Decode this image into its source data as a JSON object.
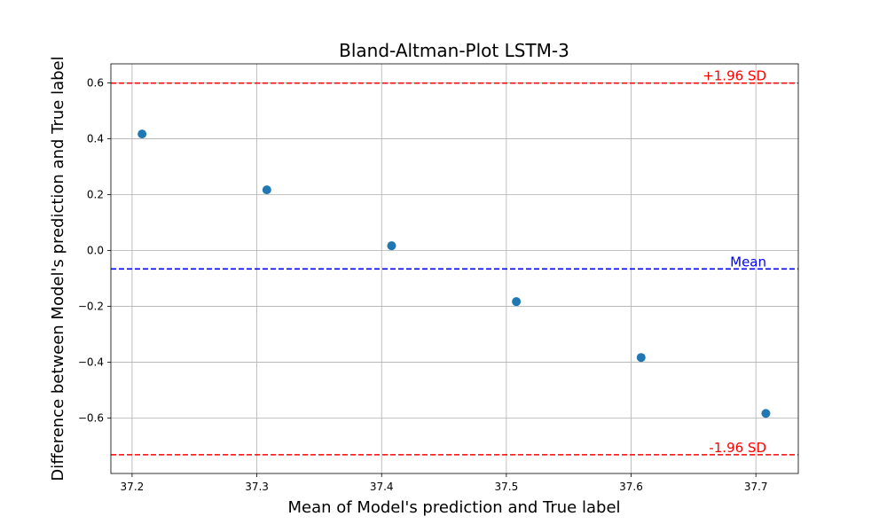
{
  "chart_data": {
    "type": "scatter",
    "title": "Bland-Altman-Plot LSTM-3",
    "xlabel": "Mean of Model's prediction and True label",
    "ylabel": "Difference between Model's prediction and True label",
    "xlim": [
      37.183,
      37.734
    ],
    "ylim": [
      -0.798,
      0.668
    ],
    "grid": true,
    "x_ticks": [
      37.2,
      37.3,
      37.4,
      37.5,
      37.6,
      37.7
    ],
    "x_tick_labels": [
      "37.2",
      "37.3",
      "37.4",
      "37.5",
      "37.6",
      "37.7"
    ],
    "y_ticks": [
      0.6,
      0.4,
      0.2,
      0.0,
      -0.2,
      -0.4,
      -0.6
    ],
    "y_tick_labels": [
      "0.6",
      "0.4",
      "0.2",
      "0.0",
      "−0.2",
      "−0.4",
      "−0.6"
    ],
    "points": [
      {
        "x": 37.208,
        "y": 0.417
      },
      {
        "x": 37.308,
        "y": 0.217
      },
      {
        "x": 37.408,
        "y": 0.017
      },
      {
        "x": 37.508,
        "y": -0.183
      },
      {
        "x": 37.608,
        "y": -0.383
      },
      {
        "x": 37.708,
        "y": -0.583
      }
    ],
    "point_color": "#1f77b4",
    "reference_lines": [
      {
        "id": "upper-loa-line",
        "label": "+1.96 SD",
        "y": 0.599,
        "color": "#ff0000"
      },
      {
        "id": "mean-line",
        "label": "Mean",
        "y": -0.066,
        "color": "#0000ff"
      },
      {
        "id": "lower-loa-line",
        "label": "-1.96 SD",
        "y": -0.731,
        "color": "#ff0000"
      }
    ]
  }
}
